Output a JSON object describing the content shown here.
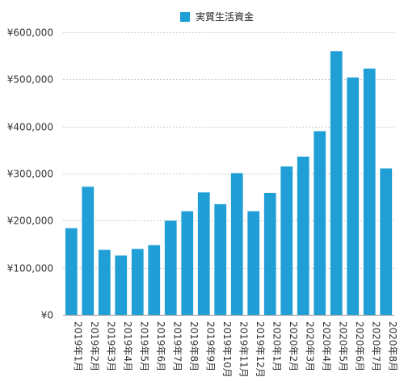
{
  "chart_data": {
    "type": "bar",
    "legend": {
      "label": "実質生活資金",
      "position": "top-center"
    },
    "colors": {
      "bar": "#1f9fd6",
      "grid": "#cccccc",
      "axis": "#999999",
      "text": "#333333"
    },
    "ylim": [
      0,
      600000
    ],
    "yticks": [
      {
        "value": 0,
        "label": "¥0"
      },
      {
        "value": 100000,
        "label": "¥100,000"
      },
      {
        "value": 200000,
        "label": "¥200,000"
      },
      {
        "value": 300000,
        "label": "¥300,000"
      },
      {
        "value": 400000,
        "label": "¥400,000"
      },
      {
        "value": 500000,
        "label": "¥500,000"
      },
      {
        "value": 600000,
        "label": "¥600,000"
      }
    ],
    "grid": true,
    "categories": [
      "2019年1月",
      "2019年2月",
      "2019年3月",
      "2019年4月",
      "2019年5月",
      "2019年6月",
      "2019年7月",
      "2019年8月",
      "2019年9月",
      "2019年10月",
      "2019年11月",
      "2019年12月",
      "2020年1月",
      "2020年2月",
      "2020年3月",
      "2020年4月",
      "2020年5月",
      "2020年6月",
      "2020年7月",
      "2020年8月"
    ],
    "series": [
      {
        "name": "実質生活資金",
        "values": [
          184000,
          272000,
          138000,
          126000,
          140000,
          148000,
          200000,
          220000,
          260000,
          235000,
          301000,
          220000,
          259000,
          315000,
          336000,
          390000,
          560000,
          504000,
          523000,
          311000
        ]
      }
    ]
  }
}
